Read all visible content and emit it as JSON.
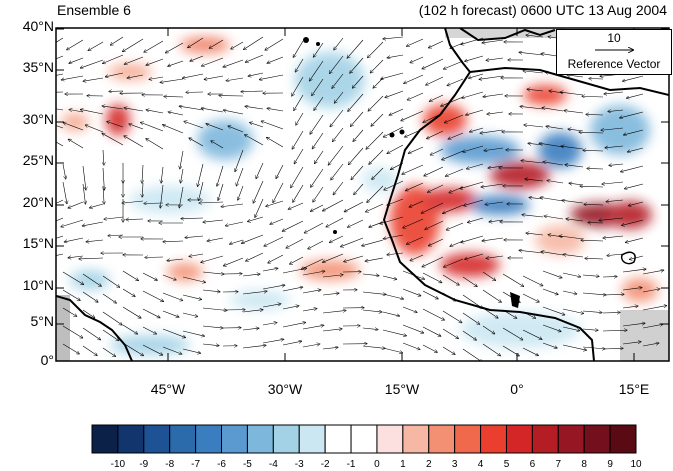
{
  "title_left": "Ensemble 6",
  "title_right": "(102 h forecast) 0600 UTC 13 Aug 2004",
  "reference_vector": {
    "magnitude": "10",
    "label": "Reference Vector"
  },
  "lat_ticks": [
    "40°N",
    "35°N",
    "30°N",
    "25°N",
    "20°N",
    "15°N",
    "10°N",
    "5°N",
    "0°"
  ],
  "lon_ticks": [
    "45°W",
    "30°W",
    "15°W",
    "0°",
    "15°E"
  ],
  "colorbar": {
    "labels": [
      "-10",
      "-9",
      "-8",
      "-7",
      "-6",
      "-5",
      "-4",
      "-3",
      "-2",
      "-1",
      "0",
      "1",
      "2",
      "3",
      "4",
      "5",
      "6",
      "7",
      "8",
      "9",
      "10"
    ],
    "colors": [
      "#0b2147",
      "#12356e",
      "#1d5394",
      "#2b6aab",
      "#3b7ebf",
      "#5a9ad0",
      "#7eb7dc",
      "#a3d2e6",
      "#cbe7f2",
      "#ffffff",
      "#ffffff",
      "#fcdfdf",
      "#f6b8a4",
      "#f38f72",
      "#f0694d",
      "#ea3f2e",
      "#d42627",
      "#b51d25",
      "#961623",
      "#740f1d",
      "#5a0a13"
    ]
  },
  "colors": {
    "land_outline": "#000000",
    "missing": "#bebebe",
    "ocean_bg": "#ffffff"
  }
}
